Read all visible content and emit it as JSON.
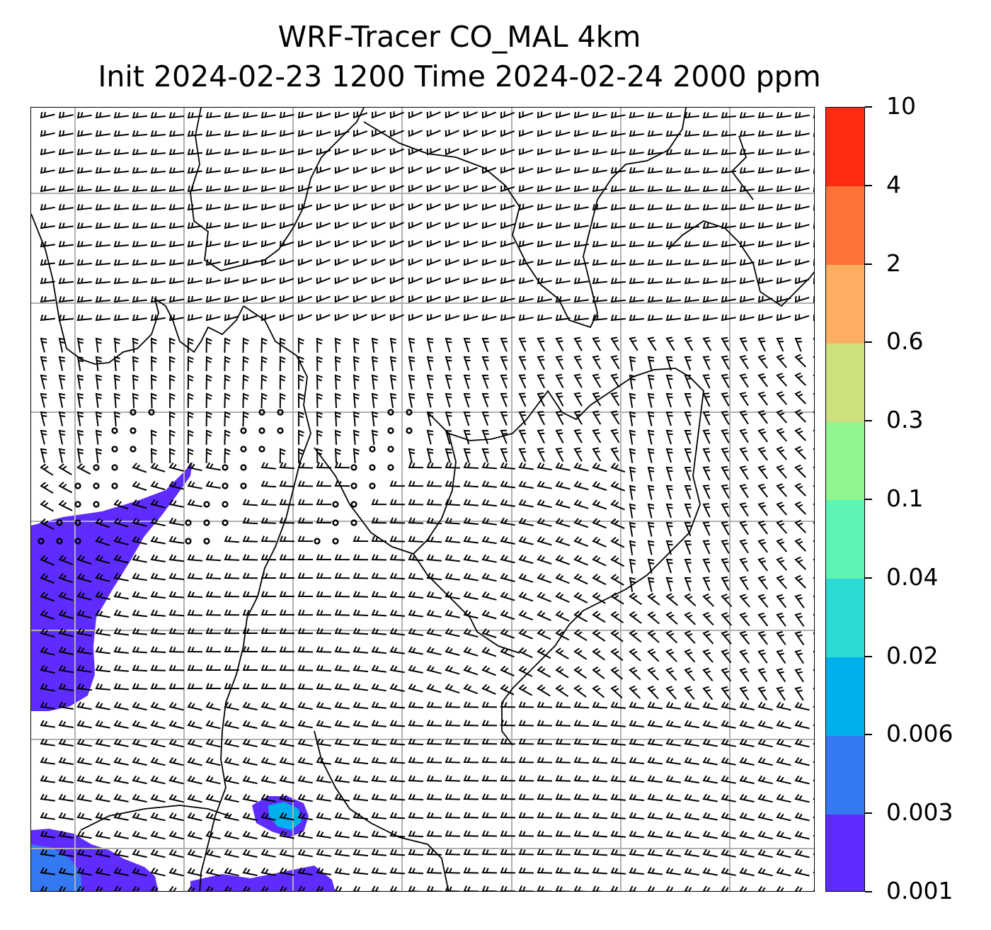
{
  "title": {
    "line1": "WRF-Tracer CO_MAL 4km",
    "line2": "Init 2024-02-23 1200 Time 2024-02-24 2000 ppm"
  },
  "colorbar": {
    "levels": [
      "0.001",
      "0.003",
      "0.006",
      "0.02",
      "0.04",
      "0.1",
      "0.3",
      "0.6",
      "2",
      "4",
      "10"
    ],
    "colors": [
      "#5f2cff",
      "#3478f4",
      "#00b0ec",
      "#2cdcd2",
      "#5df5b3",
      "#8ef590",
      "#cde07e",
      "#fdae61",
      "#fe7337",
      "#ff2b12"
    ]
  },
  "map": {
    "gridline_color": "#b0b0b0",
    "barb_color": "#000000",
    "coastline_color": "#000000",
    "tracer_fill_colors": [
      "#5f2cff",
      "#3478f4",
      "#00b0ec"
    ]
  }
}
